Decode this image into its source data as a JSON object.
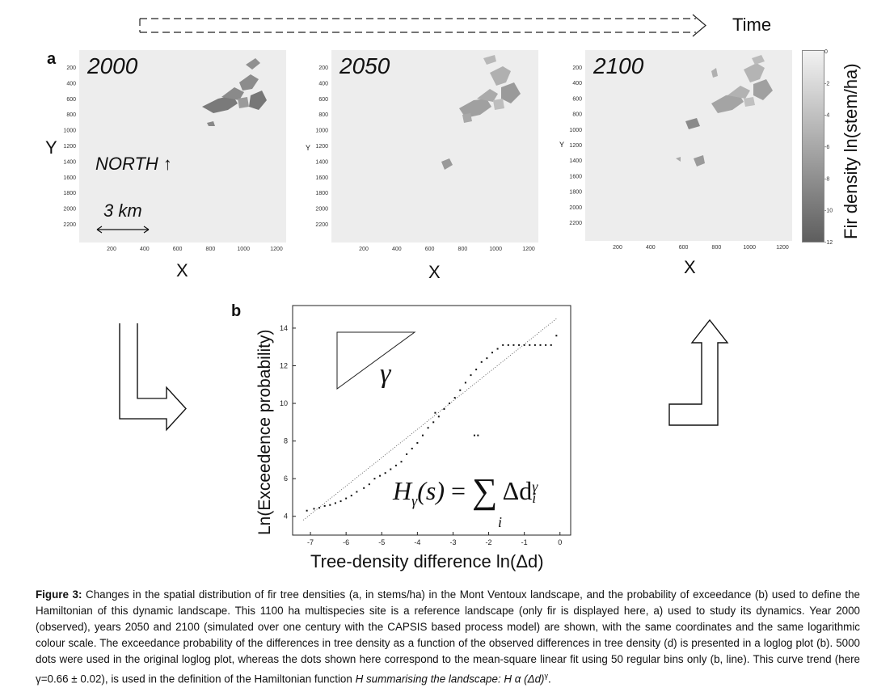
{
  "time_label": "Time",
  "panel_a": {
    "letter": "a",
    "maps": [
      {
        "year": "2000",
        "y_label": "Y",
        "x_label": "X"
      },
      {
        "year": "2050",
        "y_label": "Y",
        "x_label": "X"
      },
      {
        "year": "2100",
        "y_label": "Y",
        "x_label": "X"
      }
    ],
    "y_ticks": [
      "200",
      "400",
      "600",
      "800",
      "1000",
      "1200",
      "1400",
      "1600",
      "1800",
      "2000",
      "2200"
    ],
    "x_ticks": [
      "200",
      "400",
      "600",
      "800",
      "1000",
      "1200"
    ],
    "north_label": "NORTH ↑",
    "scale_label": "3 km",
    "colorbar": {
      "title": "Fir density ln(stem/ha)",
      "ticks": [
        "0",
        "-2",
        "-4",
        "-6",
        "-8",
        "-10",
        "-12"
      ],
      "range": [
        -12,
        0
      ]
    }
  },
  "panel_b": {
    "letter": "b",
    "gamma_symbol": "γ",
    "formula": {
      "lhs": "H",
      "lhs_sub": "γ",
      "arg": "(s)",
      "eq": "=",
      "sum": "∑",
      "sum_index": "i",
      "term": "Δd",
      "term_sub": "i",
      "term_sup": "γ"
    }
  },
  "chart_data": {
    "type": "scatter",
    "xlabel": "Tree-density difference ln(Δd)",
    "ylabel": "Ln(Exceedence probability)",
    "xlim": [
      -7.5,
      0.3
    ],
    "ylim": [
      3.0,
      15.2
    ],
    "x_ticks": [
      -7,
      -6,
      -5,
      -4,
      -3,
      -2,
      -1,
      0
    ],
    "y_ticks": [
      4,
      6,
      8,
      10,
      12,
      14
    ],
    "series": [
      {
        "values": [
          [
            -7.1,
            4.3
          ],
          [
            -6.9,
            4.4
          ],
          [
            -6.75,
            4.45
          ],
          [
            -6.6,
            4.55
          ],
          [
            -6.45,
            4.6
          ],
          [
            -6.3,
            4.7
          ],
          [
            -6.15,
            4.8
          ],
          [
            -6.0,
            4.95
          ],
          [
            -5.85,
            5.1
          ],
          [
            -5.7,
            5.3
          ],
          [
            -5.5,
            5.5
          ],
          [
            -5.35,
            5.7
          ],
          [
            -5.2,
            6.0
          ],
          [
            -5.05,
            6.15
          ],
          [
            -4.9,
            6.3
          ],
          [
            -4.75,
            6.5
          ],
          [
            -4.6,
            6.7
          ],
          [
            -4.45,
            6.9
          ],
          [
            -4.3,
            7.3
          ],
          [
            -4.15,
            7.6
          ],
          [
            -4.0,
            7.9
          ],
          [
            -3.85,
            8.3
          ],
          [
            -3.7,
            8.7
          ],
          [
            -3.55,
            9.0
          ],
          [
            -3.4,
            9.3
          ],
          [
            -3.25,
            9.7
          ],
          [
            -3.1,
            10.0
          ],
          [
            -2.95,
            10.3
          ],
          [
            -2.8,
            10.7
          ],
          [
            -2.65,
            11.1
          ],
          [
            -2.5,
            11.5
          ],
          [
            -2.35,
            11.8
          ],
          [
            -2.2,
            12.2
          ],
          [
            -2.05,
            12.4
          ],
          [
            -1.9,
            12.7
          ],
          [
            -1.75,
            12.9
          ],
          [
            -1.6,
            13.1
          ],
          [
            -1.45,
            13.1
          ],
          [
            -1.3,
            13.1
          ],
          [
            -1.15,
            13.1
          ],
          [
            -1.0,
            13.1
          ],
          [
            -0.85,
            13.1
          ],
          [
            -0.7,
            13.1
          ],
          [
            -0.55,
            13.1
          ],
          [
            -0.4,
            13.1
          ],
          [
            -0.25,
            13.1
          ],
          [
            -0.1,
            13.6
          ],
          [
            -2.4,
            8.3
          ],
          [
            -2.3,
            8.3
          ],
          [
            -3.5,
            9.5
          ]
        ]
      }
    ],
    "fit_line": {
      "x": [
        -7.2,
        -0.1
      ],
      "y": [
        3.8,
        14.5
      ]
    },
    "grid": false
  },
  "caption": {
    "label": "Figure 3:",
    "text": " Changes in the spatial distribution of fir tree densities (a, in stems/ha) in the Mont Ventoux landscape, and the probability of exceedance (b) used to define the Hamiltonian of this dynamic landscape. This 1100 ha multispecies site is a reference landscape (only fir is displayed here, a) used to study its dynamics. Year 2000 (observed), years 2050 and 2100 (simulated over one century with the CAPSIS based process model) are shown, with the same coordinates and the same logarithmic colour scale. The exceedance probability of the differences in tree density as a function of the observed differences in tree density (d) is presented in a loglog plot (b). 5000 dots were used in the original loglog plot, whereas the dots shown here correspond to the mean-square linear fit using 50 regular bins only (b, line). This curve trend (here γ=0.66 ± 0.02), is used in the definition of the Hamiltonian function",
    "tail": "H summarising the landscape: H α (Δd)",
    "tail_sup": "γ",
    "tail_end": "."
  }
}
